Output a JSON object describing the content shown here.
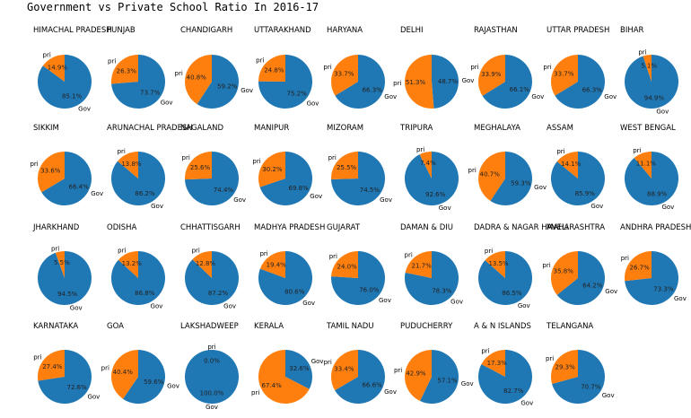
{
  "figure_title": "Government vs Private School Ratio In 2016-17",
  "colors": {
    "gov": "#1f77b4",
    "pri": "#ff7f0e"
  },
  "slice_labels": {
    "gov": "Gov",
    "pri": "pri"
  },
  "chart_data": [
    {
      "type": "pie",
      "title": "HIMACHAL PRADESH",
      "labels": [
        "Gov",
        "pri"
      ],
      "values": [
        85.1,
        14.9
      ]
    },
    {
      "type": "pie",
      "title": "PUNJAB",
      "labels": [
        "Gov",
        "pri"
      ],
      "values": [
        73.7,
        26.3
      ]
    },
    {
      "type": "pie",
      "title": "CHANDIGARH",
      "labels": [
        "Gov",
        "pri"
      ],
      "values": [
        59.2,
        40.8
      ]
    },
    {
      "type": "pie",
      "title": "UTTARAKHAND",
      "labels": [
        "Gov",
        "pri"
      ],
      "values": [
        75.2,
        24.8
      ]
    },
    {
      "type": "pie",
      "title": "HARYANA",
      "labels": [
        "Gov",
        "pri"
      ],
      "values": [
        66.3,
        33.7
      ]
    },
    {
      "type": "pie",
      "title": "DELHI",
      "labels": [
        "Gov",
        "pri"
      ],
      "values": [
        48.7,
        51.3
      ]
    },
    {
      "type": "pie",
      "title": "RAJASTHAN",
      "labels": [
        "Gov",
        "pri"
      ],
      "values": [
        66.1,
        33.9
      ]
    },
    {
      "type": "pie",
      "title": "UTTAR PRADESH",
      "labels": [
        "Gov",
        "pri"
      ],
      "values": [
        66.3,
        33.7
      ]
    },
    {
      "type": "pie",
      "title": "BIHAR",
      "labels": [
        "Gov",
        "pri"
      ],
      "values": [
        94.9,
        5.1
      ]
    },
    {
      "type": "pie",
      "title": "SIKKIM",
      "labels": [
        "Gov",
        "pri"
      ],
      "values": [
        66.4,
        33.6
      ]
    },
    {
      "type": "pie",
      "title": "ARUNACHAL PRADESH",
      "labels": [
        "Gov",
        "pri"
      ],
      "values": [
        86.2,
        13.8
      ]
    },
    {
      "type": "pie",
      "title": "NAGALAND",
      "labels": [
        "Gov",
        "pri"
      ],
      "values": [
        74.4,
        25.6
      ]
    },
    {
      "type": "pie",
      "title": "MANIPUR",
      "labels": [
        "Gov",
        "pri"
      ],
      "values": [
        69.8,
        30.2
      ]
    },
    {
      "type": "pie",
      "title": "MIZORAM",
      "labels": [
        "Gov",
        "pri"
      ],
      "values": [
        74.5,
        25.5
      ]
    },
    {
      "type": "pie",
      "title": "TRIPURA",
      "labels": [
        "Gov",
        "pri"
      ],
      "values": [
        92.6,
        7.4
      ]
    },
    {
      "type": "pie",
      "title": "MEGHALAYA",
      "labels": [
        "Gov",
        "pri"
      ],
      "values": [
        59.3,
        40.7
      ]
    },
    {
      "type": "pie",
      "title": "ASSAM",
      "labels": [
        "Gov",
        "pri"
      ],
      "values": [
        85.9,
        14.1
      ]
    },
    {
      "type": "pie",
      "title": "WEST BENGAL",
      "labels": [
        "Gov",
        "pri"
      ],
      "values": [
        88.9,
        11.1
      ]
    },
    {
      "type": "pie",
      "title": "JHARKHAND",
      "labels": [
        "Gov",
        "pri"
      ],
      "values": [
        94.5,
        5.5
      ]
    },
    {
      "type": "pie",
      "title": "ODISHA",
      "labels": [
        "Gov",
        "pri"
      ],
      "values": [
        86.8,
        13.2
      ]
    },
    {
      "type": "pie",
      "title": "CHHATTISGARH",
      "labels": [
        "Gov",
        "pri"
      ],
      "values": [
        87.2,
        12.8
      ]
    },
    {
      "type": "pie",
      "title": "MADHYA PRADESH",
      "labels": [
        "Gov",
        "pri"
      ],
      "values": [
        80.6,
        19.4
      ]
    },
    {
      "type": "pie",
      "title": "GUJARAT",
      "labels": [
        "Gov",
        "pri"
      ],
      "values": [
        76.0,
        24.0
      ]
    },
    {
      "type": "pie",
      "title": "DAMAN & DIU",
      "labels": [
        "Gov",
        "pri"
      ],
      "values": [
        78.3,
        21.7
      ]
    },
    {
      "type": "pie",
      "title": "DADRA & NAGAR HAVELI",
      "labels": [
        "Gov",
        "pri"
      ],
      "values": [
        86.5,
        13.5
      ]
    },
    {
      "type": "pie",
      "title": "MAHARASHTRA",
      "labels": [
        "Gov",
        "pri"
      ],
      "values": [
        64.2,
        35.8
      ]
    },
    {
      "type": "pie",
      "title": "ANDHRA PRADESH",
      "labels": [
        "Gov",
        "pri"
      ],
      "values": [
        73.3,
        26.7
      ]
    },
    {
      "type": "pie",
      "title": "KARNATAKA",
      "labels": [
        "Gov",
        "pri"
      ],
      "values": [
        72.6,
        27.4
      ]
    },
    {
      "type": "pie",
      "title": "GOA",
      "labels": [
        "Gov",
        "pri"
      ],
      "values": [
        59.6,
        40.4
      ]
    },
    {
      "type": "pie",
      "title": "LAKSHADWEEP",
      "labels": [
        "Gov",
        "pri"
      ],
      "values": [
        100.0,
        0.0
      ]
    },
    {
      "type": "pie",
      "title": "KERALA",
      "labels": [
        "Gov",
        "pri"
      ],
      "values": [
        32.6,
        67.4
      ]
    },
    {
      "type": "pie",
      "title": "TAMIL NADU",
      "labels": [
        "Gov",
        "pri"
      ],
      "values": [
        66.6,
        33.4
      ]
    },
    {
      "type": "pie",
      "title": "PUDUCHERRY",
      "labels": [
        "Gov",
        "pri"
      ],
      "values": [
        57.1,
        42.9
      ]
    },
    {
      "type": "pie",
      "title": "A & N ISLANDS",
      "labels": [
        "Gov",
        "pri"
      ],
      "values": [
        82.7,
        17.3
      ]
    },
    {
      "type": "pie",
      "title": "TELANGANA",
      "labels": [
        "Gov",
        "pri"
      ],
      "values": [
        70.7,
        29.3
      ]
    }
  ]
}
